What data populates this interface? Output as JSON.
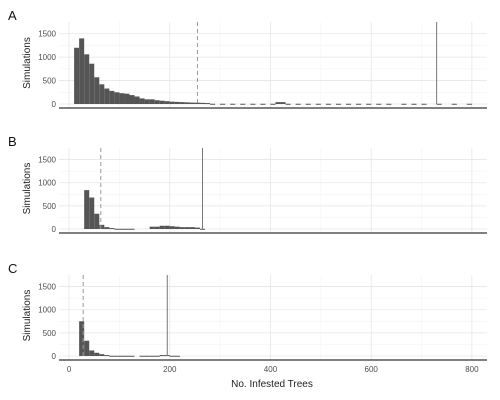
{
  "chart_data": {
    "type": "histogram",
    "bin_width": 10,
    "xlim": [
      -20,
      830
    ],
    "ylim": [
      0,
      1750
    ],
    "x_ticks": [
      0,
      200,
      400,
      600,
      800
    ],
    "y_ticks": [
      0,
      500,
      1000,
      1500
    ],
    "xlabel": "No. Infested Trees",
    "ylabel": "Simulations",
    "grid": true,
    "bar_color": "#555555",
    "panels": [
      {
        "tag": "A",
        "mean_line_x": 255,
        "max_line_x": 730,
        "bins_start": [
          10,
          20,
          30,
          40,
          50,
          60,
          70,
          80,
          90,
          100,
          110,
          120,
          130,
          140,
          150,
          160,
          170,
          180,
          190,
          200,
          210,
          220,
          230,
          240,
          250,
          260,
          270,
          410,
          420
        ],
        "counts": [
          1200,
          1400,
          1060,
          860,
          570,
          420,
          330,
          280,
          250,
          230,
          220,
          190,
          160,
          120,
          100,
          100,
          80,
          70,
          60,
          50,
          45,
          40,
          35,
          30,
          28,
          25,
          20,
          40,
          40
        ],
        "sparse_bins_start": [
          280,
          300,
          320,
          340,
          360,
          380,
          400,
          430,
          450,
          470,
          490,
          510,
          530,
          550,
          570,
          590,
          610,
          630,
          660,
          680,
          700,
          730,
          760,
          790
        ],
        "sparse_count": 5
      },
      {
        "tag": "B",
        "mean_line_x": 63,
        "max_line_x": 265,
        "bins_start": [
          30,
          40,
          50,
          60,
          70,
          80,
          160,
          170,
          180,
          190,
          200,
          210,
          220,
          230,
          240,
          250
        ],
        "counts": [
          840,
          680,
          330,
          90,
          40,
          20,
          50,
          50,
          70,
          70,
          60,
          50,
          40,
          40,
          40,
          30
        ],
        "sparse_bins_start": [
          90,
          100,
          110,
          120,
          260
        ],
        "sparse_count": 5
      },
      {
        "tag": "C",
        "mean_line_x": 28,
        "max_line_x": 195,
        "bins_start": [
          20,
          30,
          40,
          50,
          60,
          70,
          180,
          190
        ],
        "counts": [
          750,
          330,
          120,
          70,
          40,
          20,
          20,
          20
        ],
        "sparse_bins_start": [
          80,
          90,
          100,
          110,
          120,
          140,
          150,
          160,
          170,
          200,
          210
        ],
        "sparse_count": 5
      }
    ]
  }
}
